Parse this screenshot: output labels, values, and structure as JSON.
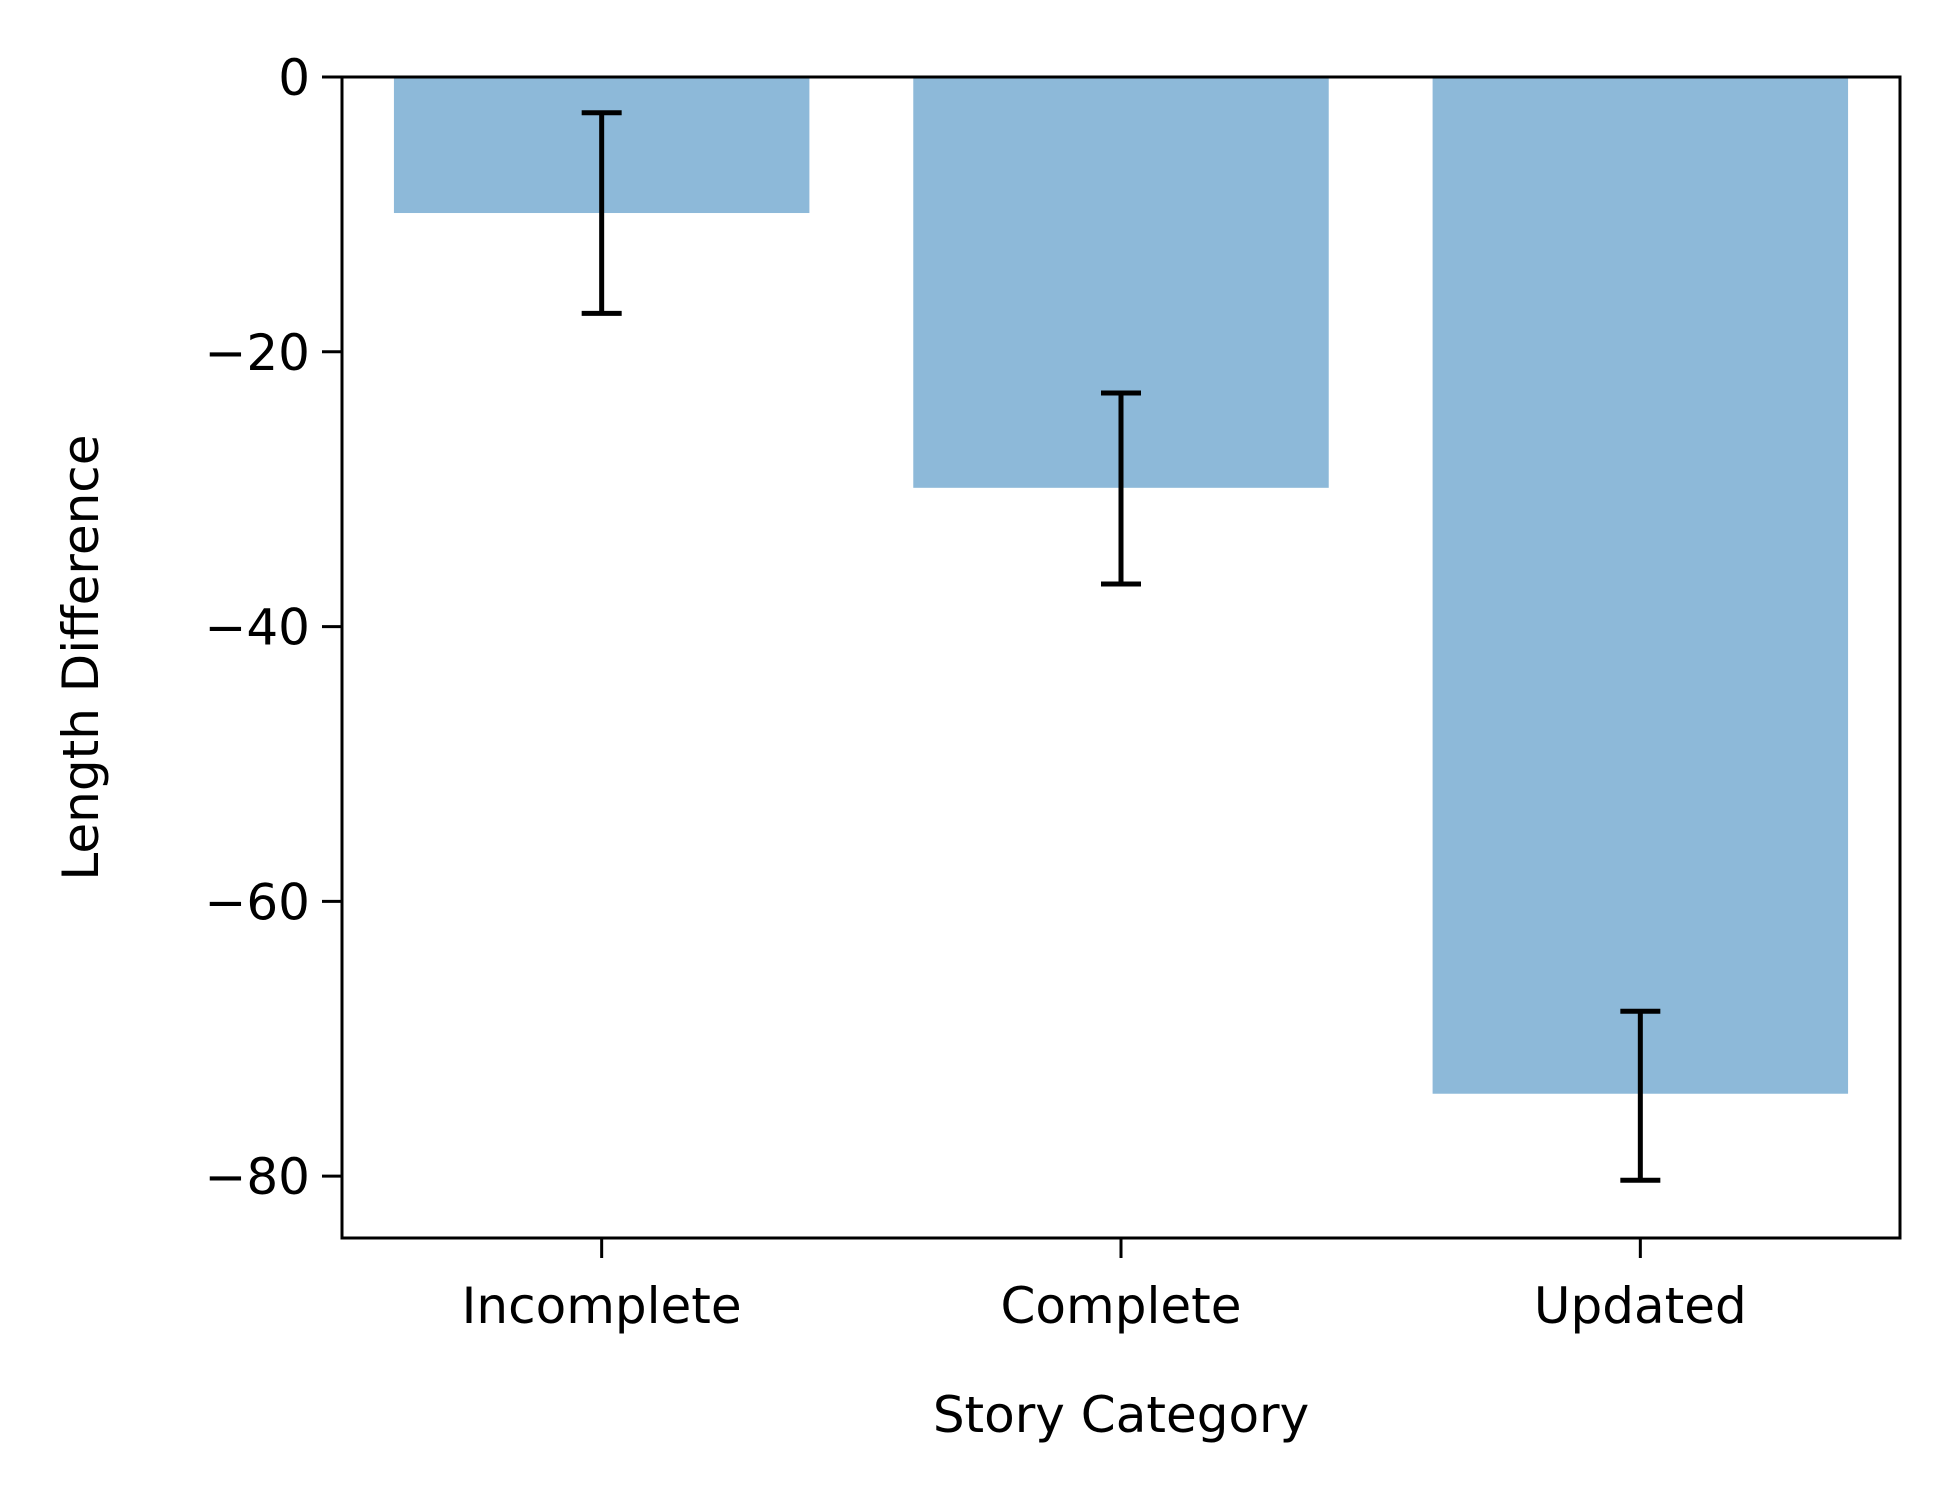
{
  "chart_data": {
    "type": "bar",
    "title": "",
    "xlabel": "Story Category",
    "ylabel": "Length Difference",
    "categories": [
      "Incomplete",
      "Complete",
      "Updated"
    ],
    "values": [
      -9.9,
      -29.9,
      -74.0
    ],
    "error_low": [
      -17.2,
      -36.9,
      -80.3
    ],
    "error_high": [
      -2.6,
      -23.0,
      -68.0
    ],
    "ylim": [
      -84.5,
      0
    ],
    "yticks": [
      0,
      -20,
      -40,
      -60,
      -80
    ],
    "ytick_labels": [
      "0",
      "−20",
      "−40",
      "−60",
      "−80"
    ],
    "grid": false,
    "legend": "none",
    "bar_color": "#8db9d9",
    "error_color": "#000000"
  }
}
